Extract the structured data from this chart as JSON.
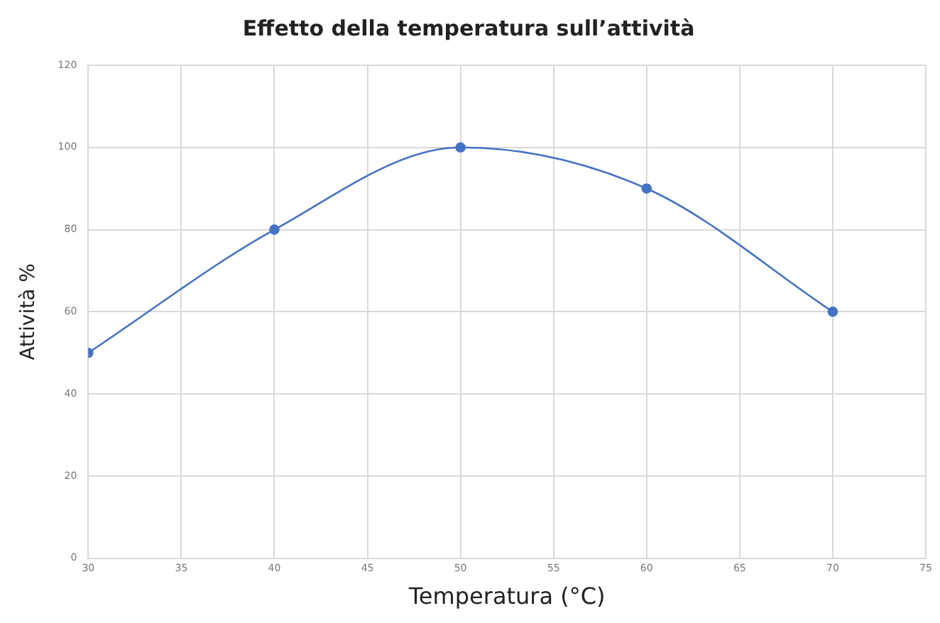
{
  "chart_data": {
    "type": "line",
    "title": "Effetto della temperatura sull’attività",
    "xlabel": "Temperatura (°C)",
    "ylabel": "Attività %",
    "x": [
      30,
      40,
      50,
      60,
      70
    ],
    "series": [
      {
        "color": "#4472c4",
        "values": [
          50,
          80,
          100,
          90,
          60
        ]
      }
    ],
    "xlim": [
      30,
      75
    ],
    "xticks": [
      30,
      35,
      40,
      45,
      50,
      55,
      60,
      65,
      70,
      75
    ],
    "ylim": [
      0,
      120
    ],
    "yticks": [
      0,
      20,
      40,
      60,
      80,
      100,
      120
    ],
    "grid": true,
    "legend": false,
    "marker": "circle",
    "line_style": "solid"
  }
}
